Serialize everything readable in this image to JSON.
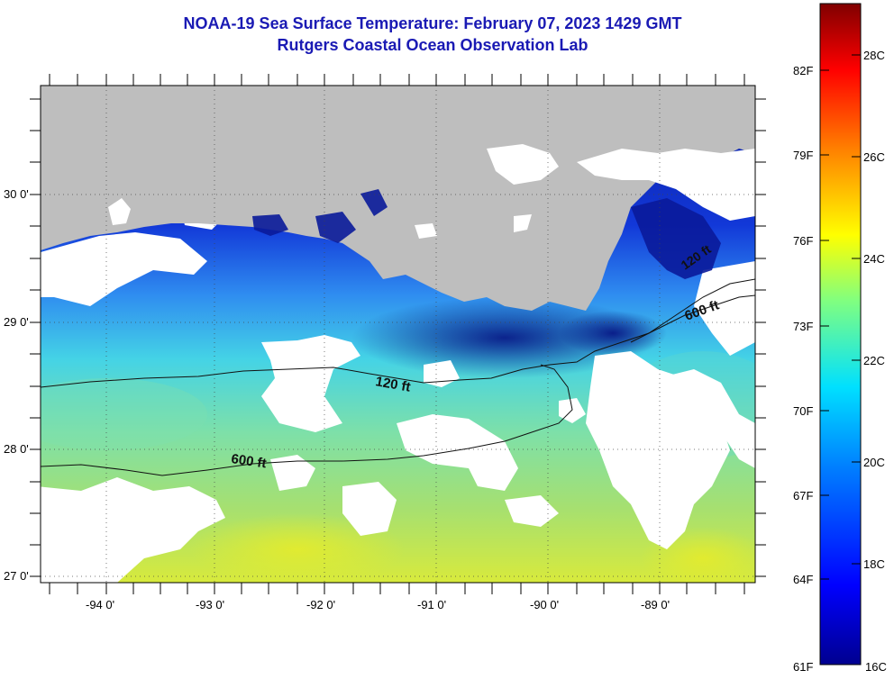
{
  "title": {
    "line1": "NOAA-19 Sea Surface Temperature:  February 07, 2023 1429 GMT",
    "line2": "Rutgers Coastal Ocean Observation Lab"
  },
  "map": {
    "lat_labels": [
      "30 0'",
      "29 0'",
      "28 0'",
      "27 0'"
    ],
    "lon_labels": [
      "-94 0'",
      "-93 0'",
      "-92 0'",
      "-91 0'",
      "-90 0'",
      "-89 0'"
    ],
    "contour_labels": {
      "shelf_120": "120 ft",
      "slope_600_west": "600 ft",
      "slope_600_east": "600 ft",
      "east_120": "120 ft"
    },
    "colors": {
      "land": "#bebebe",
      "cloud": "#ffffff",
      "cold": "#1b2fd6",
      "warm": "#b8e26a"
    }
  },
  "colorbar": {
    "fahrenheit_labels": [
      "82F",
      "79F",
      "76F",
      "73F",
      "70F",
      "67F",
      "64F",
      "61F"
    ],
    "celsius_labels": [
      "28C",
      "26C",
      "24C",
      "22C",
      "20C",
      "18C",
      "16C"
    ],
    "range_c": [
      16,
      29
    ]
  }
}
